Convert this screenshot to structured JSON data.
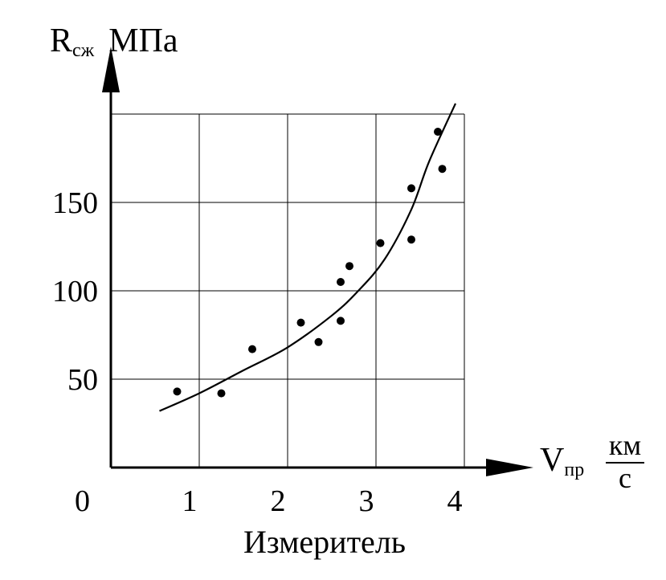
{
  "chart_data": {
    "type": "scatter",
    "title": "",
    "xlabel": "Измеритель",
    "ylabel_main": "R",
    "ylabel_sub": "сж",
    "ylabel_unit": "МПа",
    "xaxis_symbol_main": "V",
    "xaxis_symbol_sub": "пр",
    "xaxis_unit_num": "км",
    "xaxis_unit_den": "с",
    "origin_label": "0",
    "xlim": [
      0,
      4
    ],
    "ylim": [
      0,
      200
    ],
    "grid": true,
    "x_ticks": [
      "1",
      "2",
      "3",
      "4"
    ],
    "x_tick_values": [
      1,
      2,
      3,
      4
    ],
    "y_ticks": [
      "50",
      "100",
      "150"
    ],
    "y_tick_values": [
      50,
      100,
      150
    ],
    "points": [
      {
        "x": 0.75,
        "y": 43
      },
      {
        "x": 1.25,
        "y": 42
      },
      {
        "x": 1.6,
        "y": 67
      },
      {
        "x": 2.15,
        "y": 82
      },
      {
        "x": 2.35,
        "y": 71
      },
      {
        "x": 2.6,
        "y": 105
      },
      {
        "x": 2.6,
        "y": 83
      },
      {
        "x": 2.7,
        "y": 114
      },
      {
        "x": 3.05,
        "y": 127
      },
      {
        "x": 3.4,
        "y": 158
      },
      {
        "x": 3.4,
        "y": 129
      },
      {
        "x": 3.7,
        "y": 190
      },
      {
        "x": 3.75,
        "y": 169
      }
    ],
    "trend_line": [
      {
        "x": 0.55,
        "y": 32
      },
      {
        "x": 1.0,
        "y": 42
      },
      {
        "x": 1.5,
        "y": 55
      },
      {
        "x": 2.0,
        "y": 68
      },
      {
        "x": 2.5,
        "y": 86
      },
      {
        "x": 2.8,
        "y": 100
      },
      {
        "x": 3.1,
        "y": 118
      },
      {
        "x": 3.4,
        "y": 146
      },
      {
        "x": 3.6,
        "y": 173
      },
      {
        "x": 3.9,
        "y": 206
      }
    ]
  }
}
